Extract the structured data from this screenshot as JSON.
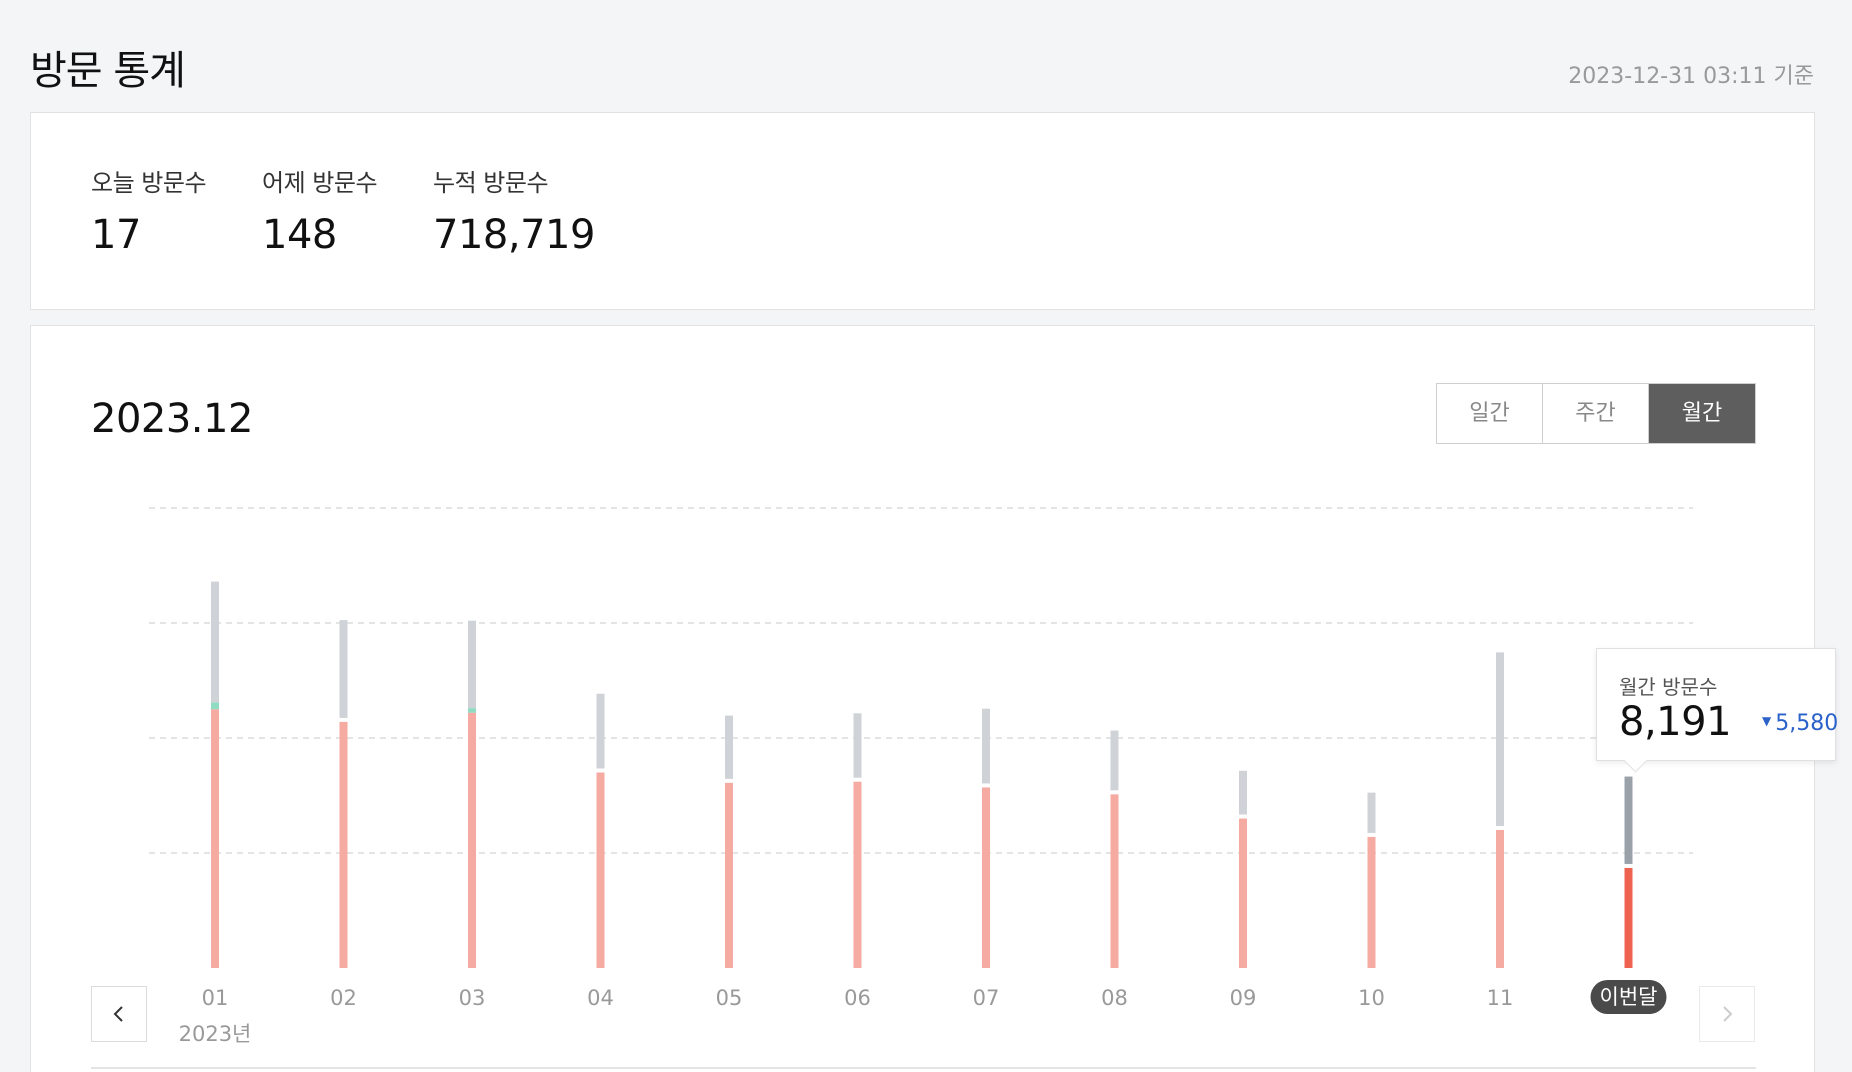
{
  "header": {
    "title": "방문 통계",
    "timestamp": "2023-12-31 03:11 기준"
  },
  "summary": {
    "today_label": "오늘 방문수",
    "today_value": "17",
    "yesterday_label": "어제 방문수",
    "yesterday_value": "148",
    "total_label": "누적 방문수",
    "total_value": "718,719"
  },
  "chart_panel": {
    "period": "2023.12",
    "tabs": [
      {
        "label": "일간",
        "active": false
      },
      {
        "label": "주간",
        "active": false
      },
      {
        "label": "월간",
        "active": true
      }
    ],
    "year_label": "2023년",
    "tooltip": {
      "label": "월간 방문수",
      "value": "8,191",
      "change": "5,580",
      "change_direction": "down"
    }
  },
  "colors": {
    "primary_bar": "#f5aba1",
    "primary_bar_current": "#ee6350",
    "secondary_bar": "#cfd2d6",
    "secondary_bar_current": "#9ba1a8",
    "teal_accent": "#8fdcc3",
    "change_blue": "#2a62c9",
    "active_tab": "#5e5e5e"
  },
  "icons": {
    "prev": "chevron-left-icon",
    "next": "chevron-right-icon"
  },
  "chart_data": {
    "type": "bar",
    "categories": [
      "01",
      "02",
      "03",
      "04",
      "05",
      "06",
      "07",
      "08",
      "09",
      "10",
      "11",
      "이번달"
    ],
    "series": [
      {
        "values": [
          22500,
          21400,
          22200,
          17000,
          16100,
          16200,
          15700,
          15100,
          13000,
          11400,
          12000,
          8700
        ]
      },
      {
        "values": [
          10500,
          8500,
          7600,
          6500,
          5500,
          5600,
          6500,
          5200,
          3800,
          3500,
          15100,
          7600
        ]
      }
    ],
    "accent_values": [
      600,
      0,
      400,
      0,
      0,
      0,
      0,
      0,
      0,
      0,
      0,
      0
    ],
    "stacked": true,
    "grid": true,
    "ylim": [
      0,
      40000
    ]
  }
}
